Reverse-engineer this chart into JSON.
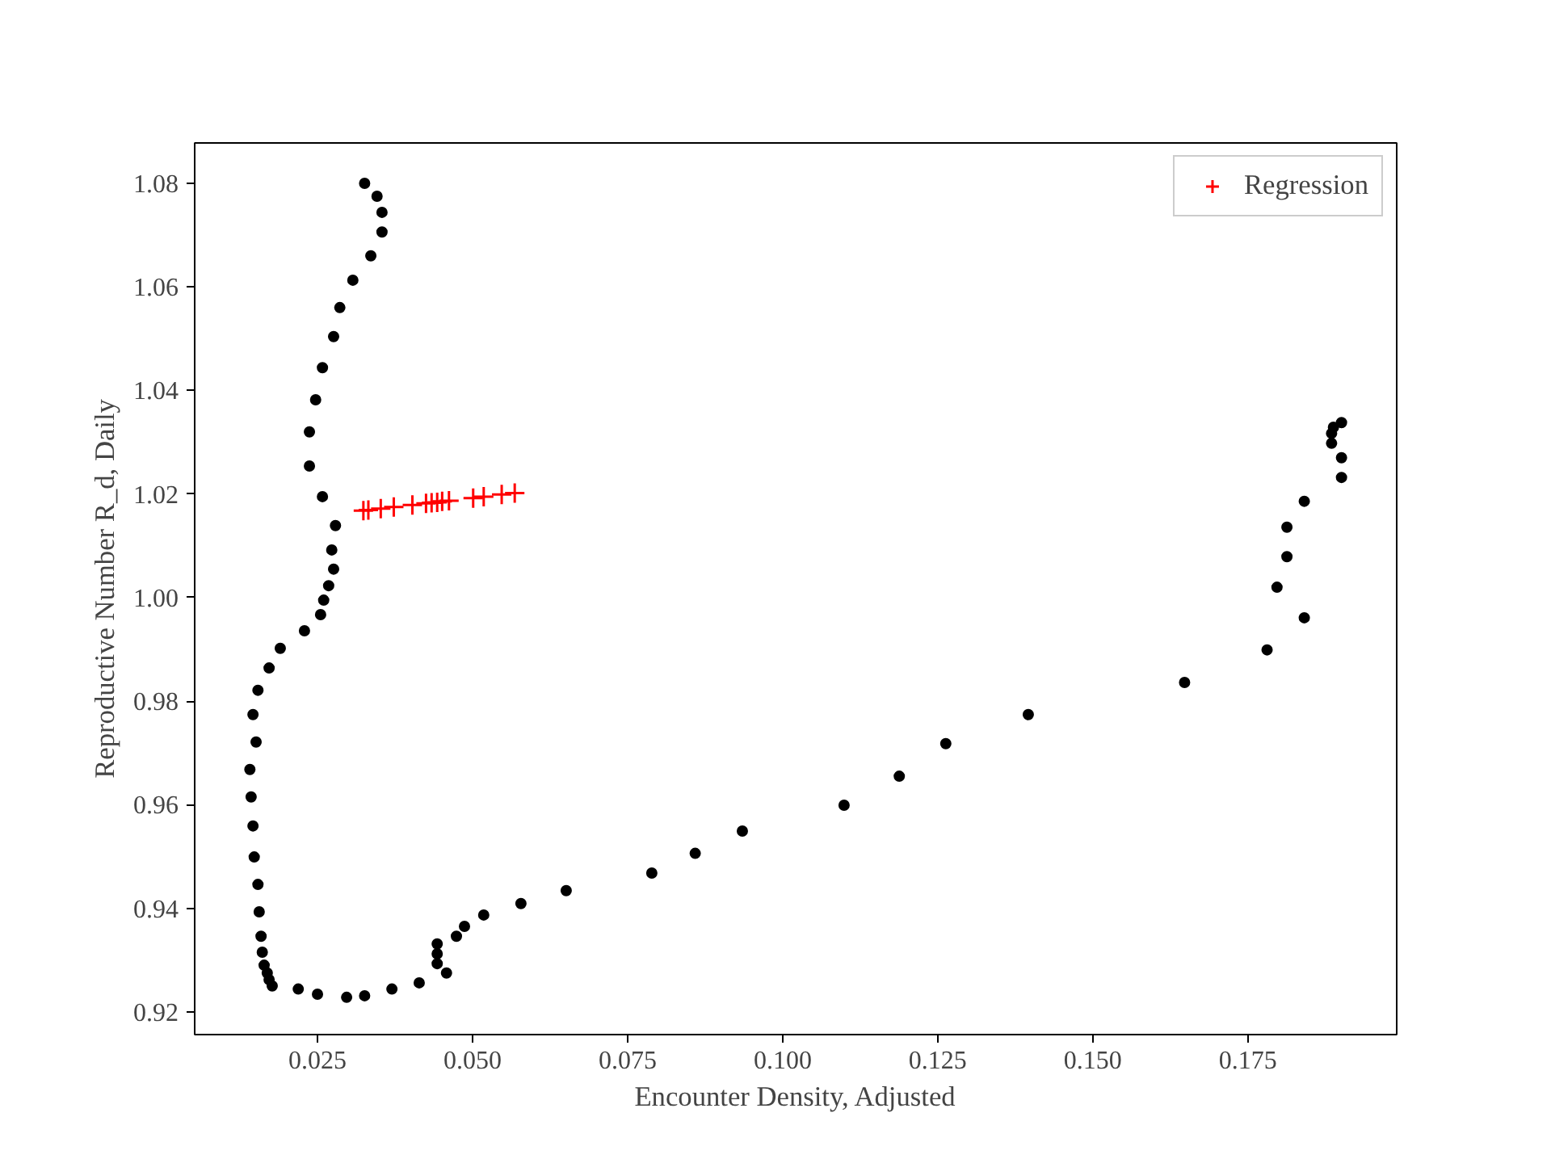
{
  "chart_data": {
    "type": "scatter",
    "xlabel": "Encounter Density, Adjusted",
    "ylabel": "Reproductive Number R_d, Daily",
    "xlim": [
      0.0052,
      0.199
    ],
    "ylim": [
      0.9156,
      1.0878
    ],
    "xticks": [
      {
        "value": 0.025,
        "label": "0.025"
      },
      {
        "value": 0.05,
        "label": "0.050"
      },
      {
        "value": 0.075,
        "label": "0.075"
      },
      {
        "value": 0.1,
        "label": "0.100"
      },
      {
        "value": 0.125,
        "label": "0.125"
      },
      {
        "value": 0.15,
        "label": "0.150"
      },
      {
        "value": 0.175,
        "label": "0.175"
      }
    ],
    "yticks": [
      {
        "value": 0.92,
        "label": "0.92"
      },
      {
        "value": 0.94,
        "label": "0.94"
      },
      {
        "value": 0.96,
        "label": "0.96"
      },
      {
        "value": 0.98,
        "label": "0.98"
      },
      {
        "value": 1.0,
        "label": "1.00"
      },
      {
        "value": 1.02,
        "label": "1.02"
      },
      {
        "value": 1.04,
        "label": "1.04"
      },
      {
        "value": 1.06,
        "label": "1.06"
      },
      {
        "value": 1.08,
        "label": "1.08"
      }
    ],
    "legend": "top right",
    "series": [
      {
        "color": "#000000",
        "marker": "circle",
        "x": [
          0.0326,
          0.0346,
          0.0354,
          0.0354,
          0.0336,
          0.0307,
          0.0286,
          0.0276,
          0.0258,
          0.0247,
          0.0237,
          0.0237,
          0.0258,
          0.0279,
          0.0273,
          0.0276,
          0.0268,
          0.026,
          0.0255,
          0.0229,
          0.019,
          0.0172,
          0.0154,
          0.0146,
          0.0151,
          0.0141,
          0.0143,
          0.0146,
          0.0148,
          0.0154,
          0.0156,
          0.0159,
          0.0161,
          0.0164,
          0.0169,
          0.0172,
          0.0177,
          0.0219,
          0.025,
          0.0297,
          0.0326,
          0.037,
          0.0414,
          0.0458,
          0.0443,
          0.0443,
          0.0443,
          0.0474,
          0.0487,
          0.0518,
          0.0578,
          0.0651,
          0.0789,
          0.0859,
          0.0935,
          0.1099,
          0.1188,
          0.1263,
          0.1396,
          0.1648,
          0.1781,
          0.1841,
          0.1797,
          0.1813,
          0.1813,
          0.1841,
          0.1901,
          0.1901,
          0.1885,
          0.1885,
          0.1888,
          0.1901
        ],
        "values": [
          1.08,
          1.0775,
          1.0744,
          1.0706,
          1.066,
          1.0613,
          1.056,
          1.0504,
          1.0444,
          1.0382,
          1.032,
          1.0254,
          1.0195,
          1.0139,
          1.0092,
          1.0055,
          1.0023,
          0.9995,
          0.9967,
          0.9936,
          0.9902,
          0.9864,
          0.9821,
          0.9774,
          0.9721,
          0.9668,
          0.9615,
          0.9559,
          0.9499,
          0.9446,
          0.9393,
          0.9346,
          0.9315,
          0.929,
          0.9275,
          0.9262,
          0.925,
          0.9244,
          0.9234,
          0.9228,
          0.9231,
          0.9244,
          0.9256,
          0.9275,
          0.9293,
          0.9312,
          0.9331,
          0.9346,
          0.9365,
          0.9387,
          0.9409,
          0.9434,
          0.9468,
          0.9506,
          0.9549,
          0.9599,
          0.9655,
          0.9718,
          0.9774,
          0.9836,
          0.9899,
          0.9961,
          1.002,
          1.0079,
          1.0136,
          1.0186,
          1.0232,
          1.027,
          1.0298,
          1.0317,
          1.0329,
          1.0338
        ]
      },
      {
        "name": "Regression",
        "color": "#ff0000",
        "marker": "cross",
        "x": [
          0.0324,
          0.0332,
          0.0352,
          0.0373,
          0.0403,
          0.0425,
          0.0434,
          0.0443,
          0.0451,
          0.0462,
          0.0501,
          0.0518,
          0.0547,
          0.0568
        ],
        "values": [
          1.0168,
          1.0169,
          1.0172,
          1.0175,
          1.0179,
          1.0182,
          1.0183,
          1.0184,
          1.0186,
          1.0187,
          1.0192,
          1.0195,
          1.0199,
          1.0202
        ]
      }
    ]
  }
}
